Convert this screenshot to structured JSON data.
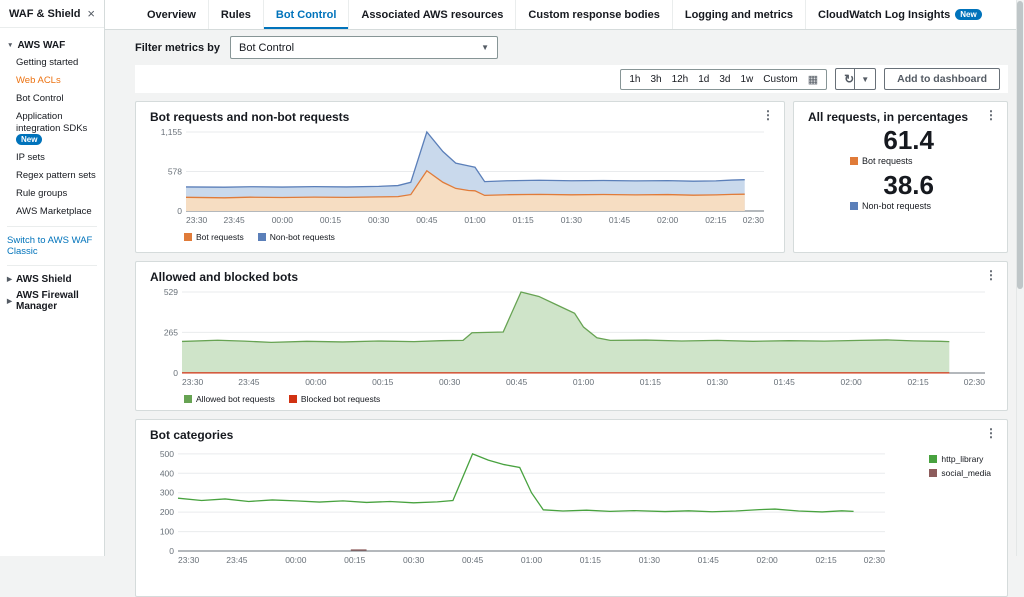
{
  "icons": {
    "close": "×",
    "caret_down": "▼",
    "caret_right": "▶",
    "select_caret": "▼",
    "calendar": "▦",
    "refresh": "↻",
    "kebab": "⋮"
  },
  "colors": {
    "accent_blue": "#0073bb",
    "nav_active_orange": "#ec7211",
    "bot_orange": "#e07b39",
    "nonbot_blue": "#5b7fb9",
    "allowed_green": "#67a353",
    "blocked_red": "#d13212",
    "http_library_green": "#48a23f",
    "social_media_maroon": "#8d5c5c"
  },
  "sidebar": {
    "title": "WAF & Shield",
    "aws_waf": "AWS WAF",
    "items": [
      "Getting started",
      "Web ACLs",
      "Bot Control",
      "Application integration SDKs",
      "IP sets",
      "Regex pattern sets",
      "Rule groups",
      "AWS Marketplace"
    ],
    "new_badge": "New",
    "classic_link": "Switch to AWS WAF Classic",
    "aws_shield": "AWS Shield",
    "firewall_manager": "AWS Firewall Manager"
  },
  "tabs": [
    {
      "label": "Overview"
    },
    {
      "label": "Rules"
    },
    {
      "label": "Bot Control"
    },
    {
      "label": "Associated AWS resources"
    },
    {
      "label": "Custom response bodies"
    },
    {
      "label": "Logging and metrics"
    },
    {
      "label": "CloudWatch Log Insights",
      "badge": "New"
    }
  ],
  "filter": {
    "label": "Filter metrics by",
    "value": "Bot Control"
  },
  "toolbar": {
    "ranges": [
      "1h",
      "3h",
      "12h",
      "1d",
      "3d",
      "1w",
      "Custom"
    ],
    "add_button": "Add to dashboard"
  },
  "panels": {
    "requests": {
      "title": "Bot requests and non-bot requests"
    },
    "percentages": {
      "title": "All requests, in percentages",
      "bot": {
        "value": "61.4",
        "label": "Bot requests"
      },
      "nonbot": {
        "value": "38.6",
        "label": "Non-bot requests"
      }
    },
    "allowed": {
      "title": "Allowed and blocked bots"
    },
    "categories": {
      "title": "Bot categories"
    }
  },
  "chart_data": [
    {
      "id": "chart-bot-requests",
      "type": "area",
      "title": "Bot requests and non-bot requests",
      "x_max": 180,
      "x_ticks": [
        "23:30",
        "23:45",
        "00:00",
        "00:15",
        "00:30",
        "00:45",
        "01:00",
        "01:15",
        "01:30",
        "01:45",
        "02:00",
        "02:15",
        "02:30"
      ],
      "ylim": [
        0,
        1155
      ],
      "y_ticks": [
        {
          "v": 0,
          "label": "0"
        },
        {
          "v": 578,
          "label": "578"
        },
        {
          "v": 1155,
          "label": "1,155"
        }
      ],
      "grid": true,
      "legend_position": "bottom",
      "legend": [
        {
          "label": "Bot requests",
          "color": "#e07b39"
        },
        {
          "label": "Non-bot requests",
          "color": "#5b7fb9"
        }
      ],
      "series": [
        {
          "name": "Non-bot requests",
          "color": "#5b7fb9",
          "fill": "#c9d9ec",
          "points": [
            [
              0,
              352
            ],
            [
              12,
              348
            ],
            [
              20,
              355
            ],
            [
              30,
              350
            ],
            [
              40,
              356
            ],
            [
              50,
              352
            ],
            [
              60,
              360
            ],
            [
              66,
              372
            ],
            [
              70,
              420
            ],
            [
              75,
              1155
            ],
            [
              80,
              870
            ],
            [
              84,
              700
            ],
            [
              88,
              660
            ],
            [
              90,
              640
            ],
            [
              93,
              430
            ],
            [
              100,
              442
            ],
            [
              110,
              450
            ],
            [
              120,
              442
            ],
            [
              130,
              446
            ],
            [
              140,
              440
            ],
            [
              150,
              444
            ],
            [
              158,
              436
            ],
            [
              165,
              440
            ],
            [
              170,
              452
            ],
            [
              174,
              458
            ]
          ]
        },
        {
          "name": "Bot requests",
          "color": "#e07b39",
          "fill": "#f6ddc2",
          "points": [
            [
              0,
              200
            ],
            [
              12,
              193
            ],
            [
              20,
              202
            ],
            [
              30,
              197
            ],
            [
              40,
              203
            ],
            [
              50,
              199
            ],
            [
              60,
              206
            ],
            [
              66,
              210
            ],
            [
              70,
              240
            ],
            [
              75,
              588
            ],
            [
              80,
              420
            ],
            [
              84,
              330
            ],
            [
              88,
              300
            ],
            [
              90,
              295
            ],
            [
              93,
              228
            ],
            [
              100,
              238
            ],
            [
              110,
              243
            ],
            [
              120,
              237
            ],
            [
              130,
              241
            ],
            [
              140,
              236
            ],
            [
              150,
              240
            ],
            [
              158,
              231
            ],
            [
              165,
              236
            ],
            [
              170,
              243
            ],
            [
              174,
              246
            ]
          ]
        }
      ]
    },
    {
      "id": "chart-allowed-blocked",
      "type": "area",
      "title": "Allowed and blocked bots",
      "x_max": 180,
      "x_ticks": [
        "23:30",
        "23:45",
        "00:00",
        "00:15",
        "00:30",
        "00:45",
        "01:00",
        "01:15",
        "01:30",
        "01:45",
        "02:00",
        "02:15",
        "02:30"
      ],
      "ylim": [
        0,
        529
      ],
      "y_ticks": [
        {
          "v": 0,
          "label": "0"
        },
        {
          "v": 265,
          "label": "265"
        },
        {
          "v": 529,
          "label": "529"
        }
      ],
      "grid": true,
      "legend_position": "bottom",
      "legend": [
        {
          "label": "Allowed bot requests",
          "color": "#67a353"
        },
        {
          "label": "Blocked bot requests",
          "color": "#d13212"
        }
      ],
      "series": [
        {
          "name": "Allowed bot requests",
          "color": "#67a353",
          "fill": "#cfe4c9",
          "points": [
            [
              0,
              206
            ],
            [
              8,
              214
            ],
            [
              14,
              208
            ],
            [
              20,
              200
            ],
            [
              28,
              207
            ],
            [
              36,
              203
            ],
            [
              44,
              209
            ],
            [
              52,
              205
            ],
            [
              58,
              211
            ],
            [
              63,
              213
            ],
            [
              65,
              263
            ],
            [
              72,
              268
            ],
            [
              76,
              529
            ],
            [
              80,
              500
            ],
            [
              84,
              445
            ],
            [
              88,
              390
            ],
            [
              90,
              300
            ],
            [
              93,
              230
            ],
            [
              96,
              213
            ],
            [
              104,
              215
            ],
            [
              112,
              209
            ],
            [
              120,
              213
            ],
            [
              128,
              207
            ],
            [
              136,
              211
            ],
            [
              144,
              208
            ],
            [
              152,
              213
            ],
            [
              158,
              216
            ],
            [
              164,
              210
            ],
            [
              170,
              207
            ],
            [
              172,
              205
            ]
          ]
        },
        {
          "name": "Blocked bot requests",
          "color": "#d13212",
          "fill": "none",
          "points": [
            [
              0,
              1
            ],
            [
              172,
              1
            ]
          ]
        }
      ]
    },
    {
      "id": "chart-bot-categories",
      "type": "line",
      "title": "Bot categories",
      "x_max": 180,
      "x_ticks": [
        "23:30",
        "23:45",
        "00:00",
        "00:15",
        "00:30",
        "00:45",
        "01:00",
        "01:15",
        "01:30",
        "01:45",
        "02:00",
        "02:15",
        "02:30"
      ],
      "ylim": [
        0,
        520
      ],
      "y_ticks": [
        {
          "v": 0,
          "label": "0"
        },
        {
          "v": 100,
          "label": "100"
        },
        {
          "v": 200,
          "label": "200"
        },
        {
          "v": 300,
          "label": "300"
        },
        {
          "v": 400,
          "label": "400"
        },
        {
          "v": 500,
          "label": "500"
        }
      ],
      "grid": true,
      "legend_position": "right",
      "legend": [
        {
          "label": "http_library",
          "color": "#48a23f"
        },
        {
          "label": "social_media",
          "color": "#8d5c5c"
        }
      ],
      "series": [
        {
          "name": "http_library",
          "color": "#48a23f",
          "fill": "none",
          "points": [
            [
              0,
              272
            ],
            [
              6,
              260
            ],
            [
              12,
              268
            ],
            [
              18,
              255
            ],
            [
              24,
              263
            ],
            [
              30,
              258
            ],
            [
              36,
              252
            ],
            [
              42,
              258
            ],
            [
              48,
              250
            ],
            [
              54,
              255
            ],
            [
              60,
              248
            ],
            [
              66,
              253
            ],
            [
              70,
              260
            ],
            [
              75,
              500
            ],
            [
              79,
              468
            ],
            [
              83,
              445
            ],
            [
              87,
              430
            ],
            [
              90,
              300
            ],
            [
              93,
              212
            ],
            [
              98,
              206
            ],
            [
              104,
              210
            ],
            [
              110,
              204
            ],
            [
              116,
              208
            ],
            [
              124,
              203
            ],
            [
              130,
              207
            ],
            [
              136,
              202
            ],
            [
              142,
              206
            ],
            [
              148,
              213
            ],
            [
              152,
              216
            ],
            [
              158,
              206
            ],
            [
              164,
              201
            ],
            [
              169,
              207
            ],
            [
              172,
              204
            ]
          ]
        },
        {
          "name": "social_media",
          "color": "#8d5c5c",
          "fill": "none",
          "points": [
            [
              44,
              5
            ],
            [
              48,
              5
            ]
          ]
        }
      ]
    }
  ]
}
